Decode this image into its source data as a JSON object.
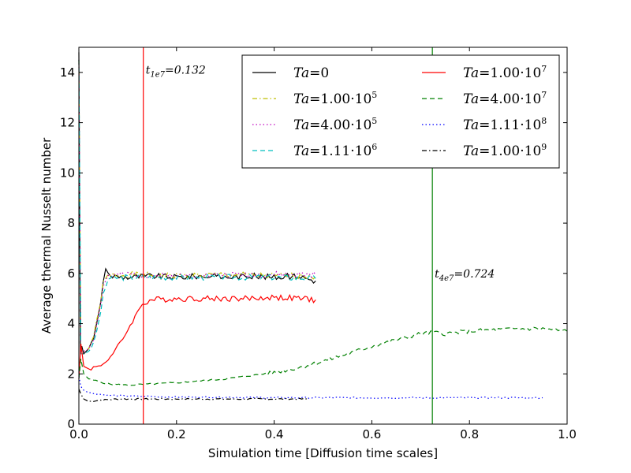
{
  "chart_data": {
    "type": "line",
    "title": "",
    "xlabel": "Simulation time [Diffusion time scales]",
    "ylabel": "Average thermal Nusselt number",
    "xlim": [
      0.0,
      1.0
    ],
    "ylim": [
      0,
      15
    ],
    "xticks": [
      0.0,
      0.2,
      0.4,
      0.6,
      0.8,
      1.0
    ],
    "xtick_labels": [
      "0.0",
      "0.2",
      "0.4",
      "0.6",
      "0.8",
      "1.0"
    ],
    "yticks": [
      0,
      2,
      4,
      6,
      8,
      10,
      12,
      14
    ],
    "ytick_labels": [
      "0",
      "2",
      "4",
      "6",
      "8",
      "10",
      "12",
      "14"
    ],
    "grid": false,
    "legend_position": "top-right",
    "series": [
      {
        "name": "Ta=0",
        "label": "Ta = 0",
        "color": "#000000",
        "style": "solid",
        "x": [
          0.0,
          0.003,
          0.006,
          0.01,
          0.02,
          0.03,
          0.04,
          0.05,
          0.055,
          0.06,
          0.1,
          0.15,
          0.2,
          0.25,
          0.3,
          0.35,
          0.4,
          0.45,
          0.485
        ],
        "y": [
          14.8,
          2.8,
          3.1,
          2.8,
          3.0,
          3.4,
          4.3,
          5.7,
          6.1,
          5.9,
          5.85,
          5.9,
          5.85,
          5.9,
          5.85,
          5.9,
          5.85,
          5.9,
          5.7
        ]
      },
      {
        "name": "Ta=1.00e5",
        "label": "Ta = 1.00·10⁵",
        "color": "#bfbf00",
        "style": "dashdot",
        "x": [
          0.0,
          0.004,
          0.01,
          0.02,
          0.03,
          0.04,
          0.05,
          0.06,
          0.1,
          0.2,
          0.3,
          0.4,
          0.485
        ],
        "y": [
          14.5,
          2.9,
          2.9,
          3.0,
          3.5,
          4.4,
          5.6,
          5.9,
          5.95,
          5.9,
          5.95,
          5.9,
          5.9
        ]
      },
      {
        "name": "Ta=4.00e5",
        "label": "Ta = 4.00·10⁵",
        "color": "#bf00bf",
        "style": "dotted",
        "x": [
          0.0,
          0.004,
          0.01,
          0.02,
          0.03,
          0.04,
          0.05,
          0.06,
          0.1,
          0.2,
          0.3,
          0.4,
          0.485
        ],
        "y": [
          14.5,
          2.9,
          2.9,
          3.0,
          3.4,
          4.3,
          5.5,
          5.9,
          5.95,
          5.9,
          5.95,
          5.95,
          5.95
        ]
      },
      {
        "name": "Ta=1.11e6",
        "label": "Ta = 1.11·10⁶",
        "color": "#00bfbf",
        "style": "dashed",
        "x": [
          0.0,
          0.004,
          0.01,
          0.02,
          0.03,
          0.04,
          0.05,
          0.06,
          0.1,
          0.2,
          0.3,
          0.4,
          0.485
        ],
        "y": [
          14.5,
          2.8,
          2.8,
          2.9,
          3.2,
          4.0,
          5.1,
          5.8,
          5.85,
          5.85,
          5.85,
          5.85,
          5.8
        ]
      },
      {
        "name": "Ta=1.00e7",
        "label": "Ta = 1.00·10⁷",
        "color": "#ff0000",
        "style": "solid",
        "x": [
          0.0,
          0.004,
          0.01,
          0.02,
          0.03,
          0.04,
          0.05,
          0.07,
          0.09,
          0.11,
          0.13,
          0.15,
          0.2,
          0.25,
          0.3,
          0.35,
          0.4,
          0.45,
          0.485
        ],
        "y": [
          1.8,
          3.2,
          2.3,
          2.2,
          2.25,
          2.3,
          2.4,
          2.8,
          3.4,
          4.1,
          4.8,
          4.95,
          5.0,
          5.0,
          5.0,
          5.0,
          5.05,
          5.0,
          4.95
        ]
      },
      {
        "name": "Ta=4.00e7",
        "label": "Ta = 4.00·10⁷",
        "color": "#008000",
        "style": "dashed",
        "x": [
          0.0,
          0.004,
          0.01,
          0.02,
          0.04,
          0.06,
          0.1,
          0.15,
          0.2,
          0.3,
          0.4,
          0.45,
          0.5,
          0.55,
          0.6,
          0.65,
          0.7,
          0.725,
          0.75,
          0.8,
          0.85,
          0.9,
          0.95,
          1.0
        ],
        "y": [
          1.8,
          2.6,
          2.0,
          1.8,
          1.7,
          1.6,
          1.55,
          1.6,
          1.65,
          1.8,
          2.05,
          2.25,
          2.5,
          2.8,
          3.1,
          3.35,
          3.6,
          3.65,
          3.6,
          3.7,
          3.75,
          3.8,
          3.8,
          3.7
        ]
      },
      {
        "name": "Ta=1.11e8",
        "label": "Ta = 1.11·10⁸",
        "color": "#0000ff",
        "style": "dotted",
        "x": [
          0.0,
          0.004,
          0.01,
          0.02,
          0.04,
          0.06,
          0.1,
          0.15,
          0.2,
          0.3,
          0.4,
          0.5,
          0.6,
          0.7,
          0.8,
          0.9,
          0.95
        ],
        "y": [
          1.9,
          1.5,
          1.35,
          1.25,
          1.2,
          1.15,
          1.12,
          1.1,
          1.08,
          1.07,
          1.05,
          1.05,
          1.05,
          1.05,
          1.05,
          1.05,
          1.05
        ]
      },
      {
        "name": "Ta=1.00e9",
        "label": "Ta = 1.00·10⁹",
        "color": "#000000",
        "style": "dashdot",
        "x": [
          0.0,
          0.004,
          0.01,
          0.02,
          0.04,
          0.08,
          0.12,
          0.2,
          0.3,
          0.4,
          0.47
        ],
        "y": [
          1.4,
          1.2,
          1.0,
          0.9,
          0.95,
          1.0,
          1.0,
          1.0,
          1.0,
          1.0,
          1.0
        ]
      }
    ],
    "vlines": [
      {
        "x": 0.132,
        "color": "#ff0000",
        "label": "t_1e7 = 0.132",
        "label_main": "t",
        "label_sub": "1e7",
        "label_value": "=0.132",
        "label_y": 14.1
      },
      {
        "x": 0.724,
        "color": "#008000",
        "label": "t_4e7 = 0.724",
        "label_main": "t",
        "label_sub": "4e7",
        "label_value": "=0.724",
        "label_y": 6.0
      }
    ],
    "legend": {
      "columns": 2,
      "entries": [
        {
          "prefix": "Ta",
          "value": "=0",
          "exp": "",
          "series": 0
        },
        {
          "prefix": "Ta",
          "value": "=1.00·10",
          "exp": "7",
          "series": 4
        },
        {
          "prefix": "Ta",
          "value": "=1.00·10",
          "exp": "5",
          "series": 1
        },
        {
          "prefix": "Ta",
          "value": "=4.00·10",
          "exp": "7",
          "series": 5
        },
        {
          "prefix": "Ta",
          "value": "=4.00·10",
          "exp": "5",
          "series": 2
        },
        {
          "prefix": "Ta",
          "value": "=1.11·10",
          "exp": "8",
          "series": 6
        },
        {
          "prefix": "Ta",
          "value": "=1.11·10",
          "exp": "6",
          "series": 3
        },
        {
          "prefix": "Ta",
          "value": "=1.00·10",
          "exp": "9",
          "series": 7
        }
      ]
    }
  }
}
